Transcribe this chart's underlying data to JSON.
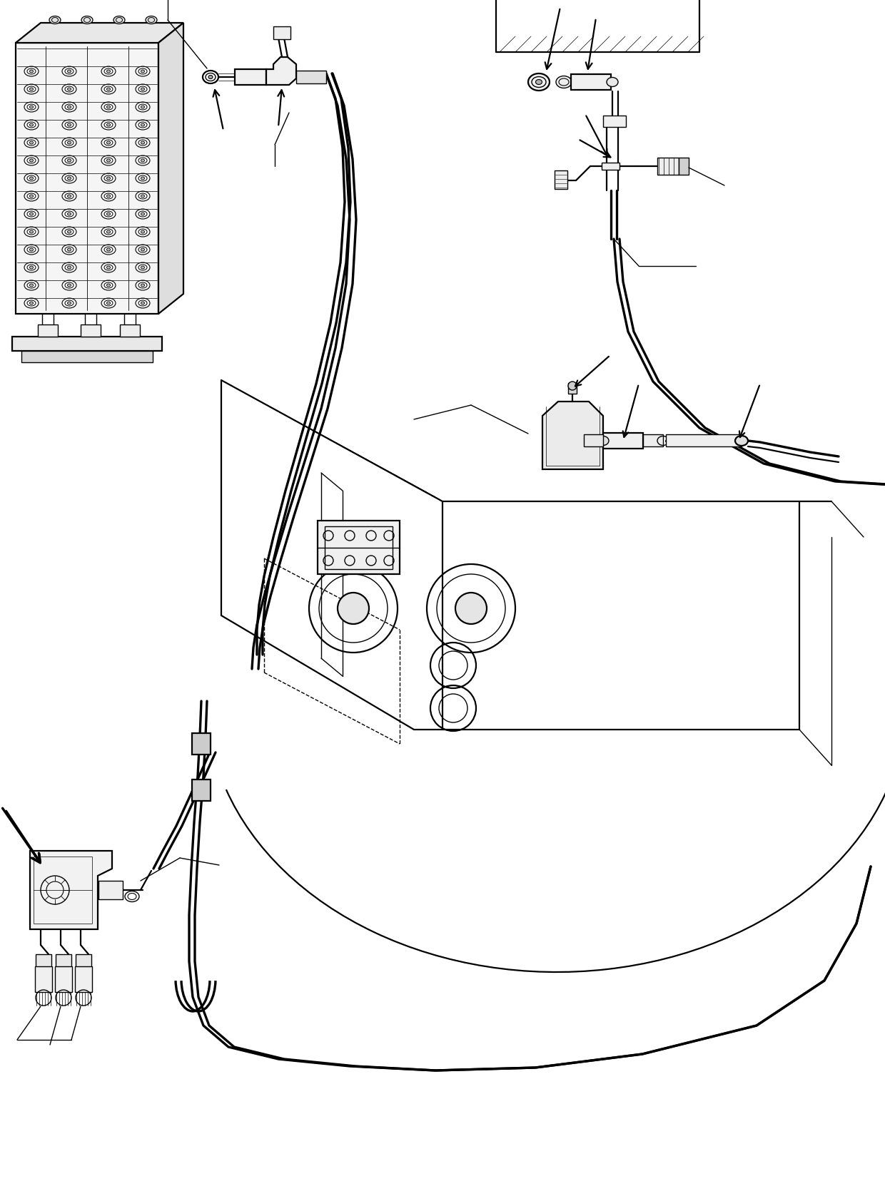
{
  "background_color": "#ffffff",
  "line_color": "#000000",
  "figsize": [
    12.4,
    16.63
  ],
  "dpi": 100,
  "xlim": [
    0,
    1240
  ],
  "ylim": [
    0,
    1663
  ]
}
